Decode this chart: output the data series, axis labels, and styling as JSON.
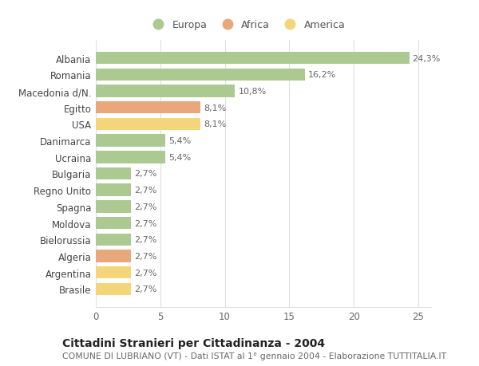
{
  "countries": [
    "Albania",
    "Romania",
    "Macedonia d/N.",
    "Egitto",
    "USA",
    "Danimarca",
    "Ucraina",
    "Bulgaria",
    "Regno Unito",
    "Spagna",
    "Moldova",
    "Bielorussia",
    "Algeria",
    "Argentina",
    "Brasile"
  ],
  "values": [
    24.3,
    16.2,
    10.8,
    8.1,
    8.1,
    5.4,
    5.4,
    2.7,
    2.7,
    2.7,
    2.7,
    2.7,
    2.7,
    2.7,
    2.7
  ],
  "labels": [
    "24,3%",
    "16,2%",
    "10,8%",
    "8,1%",
    "8,1%",
    "5,4%",
    "5,4%",
    "2,7%",
    "2,7%",
    "2,7%",
    "2,7%",
    "2,7%",
    "2,7%",
    "2,7%",
    "2,7%"
  ],
  "continent": [
    "Europa",
    "Europa",
    "Europa",
    "Africa",
    "America",
    "Europa",
    "Europa",
    "Europa",
    "Europa",
    "Europa",
    "Europa",
    "Europa",
    "Africa",
    "America",
    "America"
  ],
  "colors": {
    "Europa": "#adc992",
    "Africa": "#e8a87c",
    "America": "#f5d57a"
  },
  "title": "Cittadini Stranieri per Cittadinanza - 2004",
  "subtitle": "COMUNE DI LUBRIANO (VT) - Dati ISTAT al 1° gennaio 2004 - Elaborazione TUTTITALIA.IT",
  "xlim": [
    0,
    26
  ],
  "background_color": "#ffffff",
  "grid_color": "#e0e0e0",
  "bar_height": 0.75,
  "label_fontsize": 8,
  "ytick_fontsize": 8.5,
  "xtick_fontsize": 8.5,
  "title_fontsize": 10,
  "subtitle_fontsize": 7.8,
  "legend_fontsize": 9
}
